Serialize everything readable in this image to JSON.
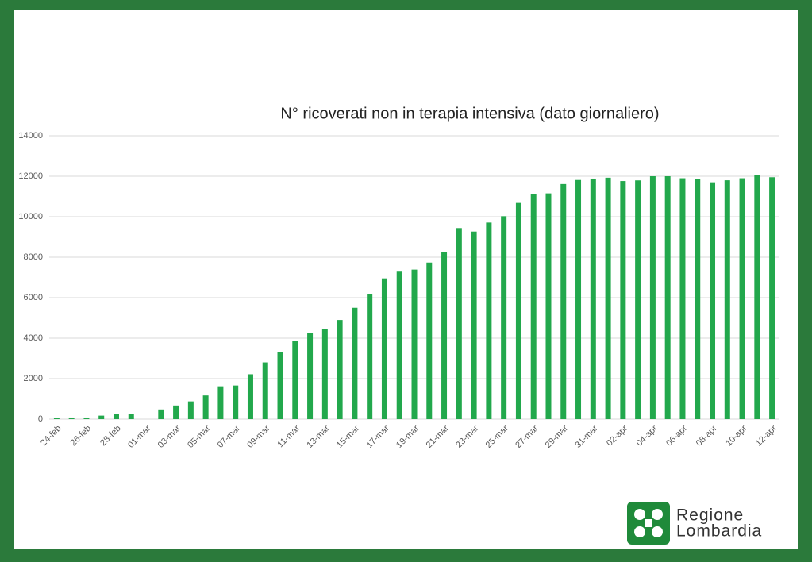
{
  "chart_data": {
    "type": "bar",
    "title": "N° ricoverati non in terapia intensiva (dato giornaliero)",
    "categories": [
      "24-feb",
      null,
      "26-feb",
      null,
      "28-feb",
      null,
      "01-mar",
      null,
      "03-mar",
      null,
      "05-mar",
      null,
      "07-mar",
      null,
      "09-mar",
      null,
      "11-mar",
      null,
      "13-mar",
      null,
      "15-mar",
      null,
      "17-mar",
      null,
      "19-mar",
      null,
      "21-mar",
      null,
      "23-mar",
      null,
      "25-mar",
      null,
      "27-mar",
      null,
      "29-mar",
      null,
      "31-mar",
      null,
      "02-apr",
      null,
      "04-apr",
      null,
      "06-apr",
      null,
      "08-apr",
      null,
      "10-apr",
      null,
      "12-apr"
    ],
    "values": [
      60,
      79,
      79,
      172,
      235,
      256,
      null,
      478,
      673,
      877,
      1169,
      1622,
      1661,
      2217,
      2802,
      3319,
      3852,
      4247,
      4435,
      4898,
      5500,
      6171,
      6953,
      7285,
      7387,
      7735,
      8258,
      9439,
      9266,
      9711,
      10026,
      10681,
      11137,
      11152,
      11613,
      11815,
      11883,
      11927,
      11762,
      11795,
      12000,
      12000,
      11900,
      11850,
      11700,
      11800,
      11900,
      12050,
      11950
    ],
    "color": "#22a84c",
    "ylim": [
      0,
      14000
    ],
    "yticks": [
      0,
      2000,
      4000,
      6000,
      8000,
      10000,
      12000,
      14000
    ],
    "grid": true
  },
  "logo": {
    "line1": "Regione",
    "line2": "Lombardia"
  }
}
